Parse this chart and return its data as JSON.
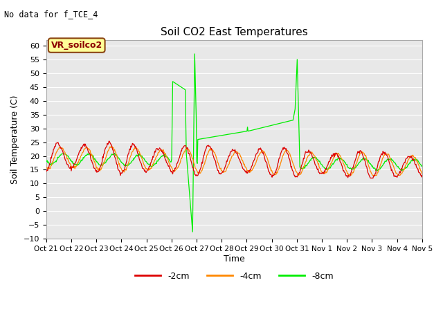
{
  "title": "Soil CO2 East Temperatures",
  "subtitle": "No data for f_TCE_4",
  "xlabel": "Time",
  "ylabel": "Soil Temperature (C)",
  "ylim": [
    -10,
    62
  ],
  "yticks": [
    -10,
    -5,
    0,
    5,
    10,
    15,
    20,
    25,
    30,
    35,
    40,
    45,
    50,
    55,
    60
  ],
  "legend_label": "VR_soilco2",
  "legend_box_color": "#FFFF99",
  "legend_box_edge": "#8B4513",
  "line_colors": {
    "-2cm": "#DD0000",
    "-4cm": "#FF8800",
    "-8cm": "#00EE00"
  },
  "xtick_labels": [
    "Oct 21",
    "Oct 22",
    "Oct 23",
    "Oct 24",
    "Oct 25",
    "Oct 26",
    "Oct 27",
    "Oct 28",
    "Oct 29",
    "Oct 30",
    "Oct 31",
    "Nov 1",
    "Nov 2",
    "Nov 3",
    "Nov 4",
    "Nov 5"
  ],
  "background_color": "#E8E8E8",
  "grid_color": "#FFFFFF",
  "fig_bg": "#FFFFFF"
}
